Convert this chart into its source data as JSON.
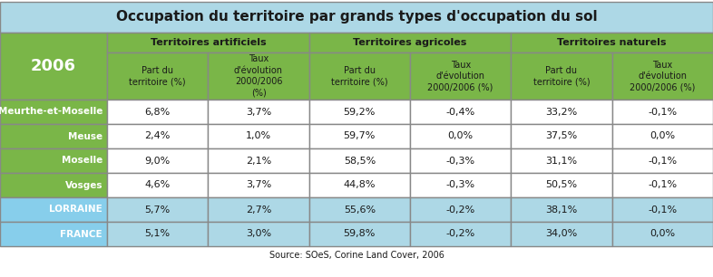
{
  "title": "Occupation du territoire par grands types d'occupation du sol",
  "source": "Source: SOeS, Corine Land Cover, 2006",
  "col_groups": [
    "Territoires artificiels",
    "Territoires agricoles",
    "Territoires naturels"
  ],
  "sub_headers_part": [
    "Part du\nterritoire (%)",
    "Taux\nd’évolution\n2000/2006\n(%)",
    "Part du\nterritoire (%)",
    "Taux\nd’évolution\n2000/2006 (%)",
    "Part du\nterritoire (%)",
    "Taux\nd’évolution\n2000/2006 (%)"
  ],
  "row_labels": [
    "Meurthe-et-Moselle",
    "Meuse",
    "Moselle",
    "Vosges",
    "LORRAINE",
    "FRANCE"
  ],
  "row_data": [
    [
      "6,8%",
      "3,7%",
      "59,2%",
      "-0,4%",
      "33,2%",
      "-0,1%"
    ],
    [
      "2,4%",
      "1,0%",
      "59,7%",
      "0,0%",
      "37,5%",
      "0,0%"
    ],
    [
      "9,0%",
      "2,1%",
      "58,5%",
      "-0,3%",
      "31,1%",
      "-0,1%"
    ],
    [
      "4,6%",
      "3,7%",
      "44,8%",
      "-0,3%",
      "50,5%",
      "-0,1%"
    ],
    [
      "5,7%",
      "2,7%",
      "55,6%",
      "-0,2%",
      "38,1%",
      "-0,1%"
    ],
    [
      "5,1%",
      "3,0%",
      "59,8%",
      "-0,2%",
      "34,0%",
      "0,0%"
    ]
  ],
  "color_title_bg": "#add8e6",
  "color_title_text": "#000000",
  "color_green_bg": "#7ab648",
  "color_green_header": "#8dc05a",
  "color_blue_label": "#87ceeb",
  "color_blue_cell": "#add8e6",
  "color_white": "#ffffff",
  "color_black": "#1a1a1a",
  "color_border": "#888888",
  "row_label_colors": [
    "#7ab648",
    "#7ab648",
    "#7ab648",
    "#7ab648",
    "#87ceeb",
    "#87ceeb"
  ],
  "lorraine_france_cell_color": "#add8e6",
  "title_fontsize": 11,
  "group_fontsize": 8,
  "subheader_fontsize": 7,
  "data_fontsize": 8,
  "label_fontsize": 7.5
}
